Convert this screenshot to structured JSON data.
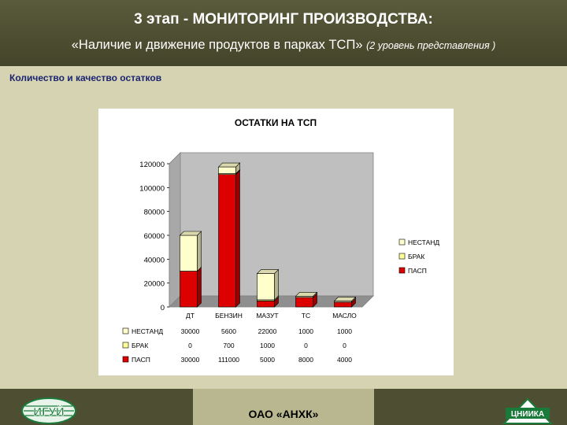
{
  "slide": {
    "title": "3 этап - МОНИТОРИНГ ПРОИЗВОДСТВА:",
    "subtitle_main": "«Наличие и движение продуктов в парках ТСП»",
    "subtitle_note": "(2 уровень представления )",
    "section_label": "Количество и качество остатков",
    "footer_org": "ОАО «АНХК»",
    "logo_left_text": "ИГУЙ",
    "logo_right_text": "ЦНИИКА"
  },
  "colors": {
    "header_bg": "#4a4a30",
    "paper_bg": "#d5d3b2",
    "series_nestand": "#ffffcc",
    "series_brak": "#ffff99",
    "series_pasp": "#dd0000",
    "plot_wall": "#bfbfbf"
  },
  "chart_data": {
    "type": "bar",
    "stacked": true,
    "three_d": true,
    "title": "ОСТАТКИ НА ТСП",
    "categories": [
      "ДТ",
      "БЕНЗИН",
      "МАЗУТ",
      "ТС",
      "МАСЛО"
    ],
    "series": [
      {
        "name": "ПАСП",
        "values": [
          30000,
          111000,
          5000,
          8000,
          4000
        ]
      },
      {
        "name": "БРАК",
        "values": [
          0,
          700,
          1000,
          0,
          0
        ]
      },
      {
        "name": "НЕСТАНД",
        "values": [
          30000,
          5600,
          22000,
          1000,
          1000
        ]
      }
    ],
    "legend_order": [
      "НЕСТАНД",
      "БРАК",
      "ПАСП"
    ],
    "table_order": [
      "НЕСТАНД",
      "БРАК",
      "ПАСП"
    ],
    "table_values": {
      "НЕСТАНД": [
        "30000",
        "5600",
        "22000",
        "1000",
        "1000"
      ],
      "БРАК": [
        "0",
        "700",
        "1000",
        "0",
        "0"
      ],
      "ПАСП": [
        "30000",
        "111000",
        "5000",
        "8000",
        "4000"
      ]
    },
    "ylim": [
      0,
      120000
    ],
    "yticks": [
      "0",
      "20000",
      "40000",
      "60000",
      "80000",
      "100000",
      "120000"
    ],
    "legend_position": "right",
    "data_table": true
  }
}
